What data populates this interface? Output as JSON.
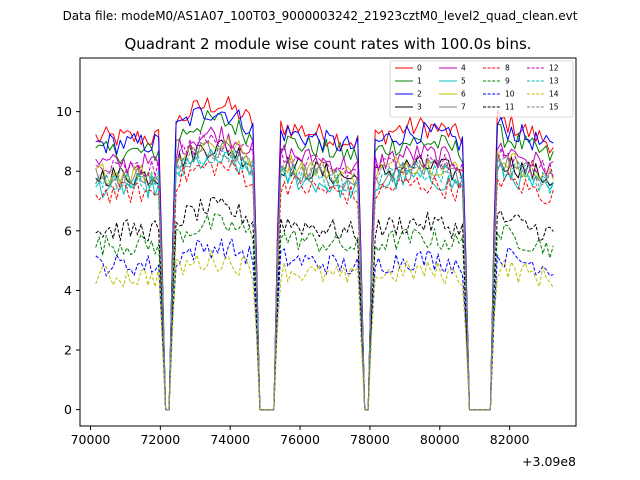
{
  "chart_data": {
    "type": "line",
    "suptitle": "Data file: modeM0/AS1A07_100T03_9000003242_21923cztM0_level2_quad_clean.evt",
    "title": "Quadrant 2 module wise count rates with 100.0s bins.",
    "xlabel": "",
    "ylabel": "",
    "x_offset_label": "+3.09e8",
    "xlim": [
      69700,
      83900
    ],
    "ylim": [
      -0.55,
      11.8
    ],
    "xticks": [
      70000,
      72000,
      74000,
      76000,
      78000,
      80000,
      82000
    ],
    "xtick_labels": [
      "70000",
      "72000",
      "74000",
      "76000",
      "78000",
      "80000",
      "82000"
    ],
    "yticks": [
      0,
      2,
      4,
      6,
      8,
      10
    ],
    "ytick_labels": [
      "0",
      "2",
      "4",
      "6",
      "8",
      "10"
    ],
    "grid": false,
    "legend_position": "top-right",
    "x_start": 70150,
    "bin_width": 100,
    "gaps": [
      [
        72100,
        72250
      ],
      [
        74850,
        75250
      ],
      [
        77800,
        77950
      ],
      [
        80850,
        81450
      ]
    ],
    "series": [
      {
        "name": "0",
        "color": "#ff0000",
        "dash": "solid",
        "level": 9.4
      },
      {
        "name": "1",
        "color": "#008000",
        "dash": "solid",
        "level": 8.9
      },
      {
        "name": "2",
        "color": "#0000ff",
        "dash": "solid",
        "level": 9.2
      },
      {
        "name": "3",
        "color": "#000000",
        "dash": "solid",
        "level": 8.1
      },
      {
        "name": "4",
        "color": "#bf00bf",
        "dash": "solid",
        "level": 8.5
      },
      {
        "name": "5",
        "color": "#00bfbf",
        "dash": "solid",
        "level": 7.7
      },
      {
        "name": "6",
        "color": "#bfbf00",
        "dash": "solid",
        "level": 8.2
      },
      {
        "name": "7",
        "color": "#808080",
        "dash": "solid",
        "level": 8.0
      },
      {
        "name": "8",
        "color": "#ff0000",
        "dash": "dashed",
        "level": 7.5
      },
      {
        "name": "9",
        "color": "#008000",
        "dash": "dashed",
        "level": 5.7
      },
      {
        "name": "10",
        "color": "#0000ff",
        "dash": "dashed",
        "level": 5.0
      },
      {
        "name": "11",
        "color": "#000000",
        "dash": "dashed",
        "level": 6.2
      },
      {
        "name": "12",
        "color": "#bf00bf",
        "dash": "dashed",
        "level": 8.3
      },
      {
        "name": "13",
        "color": "#00bfbf",
        "dash": "dashed",
        "level": 7.9
      },
      {
        "name": "14",
        "color": "#bfbf00",
        "dash": "dashed",
        "level": 4.6
      },
      {
        "name": "15",
        "color": "#808080",
        "dash": "dashed",
        "level": 8.0
      }
    ]
  }
}
